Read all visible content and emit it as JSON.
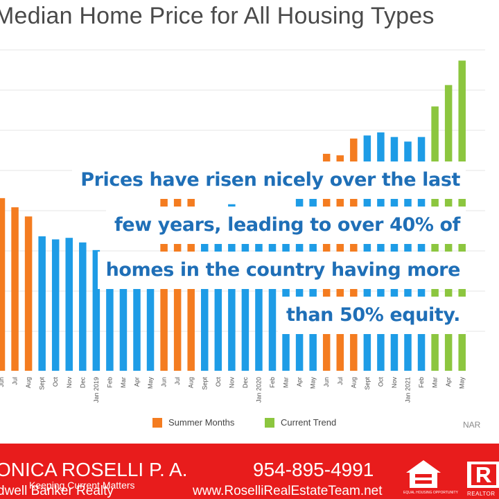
{
  "chart_data": {
    "type": "bar",
    "title": "Median Home Price for All Housing Types",
    "categories": [
      "Jun",
      "Jul",
      "Aug",
      "Sept",
      "Oct",
      "Nov",
      "Dec",
      "Jan 2019",
      "Feb",
      "Mar",
      "Apr",
      "May",
      "Jun",
      "Jul",
      "Aug",
      "Sept",
      "Oct",
      "Nov",
      "Dec",
      "Jan 2020",
      "Feb",
      "Mar",
      "Apr",
      "May",
      "Jun",
      "Jul",
      "Aug",
      "Sept",
      "Oct",
      "Nov",
      "Jan 2021",
      "Feb",
      "Mar",
      "Apr",
      "May"
    ],
    "values": [
      268,
      262,
      256,
      243,
      241,
      242,
      239,
      234,
      227,
      222,
      219,
      220,
      277,
      286,
      281,
      262,
      261,
      264,
      259,
      260,
      252,
      255,
      270,
      276,
      297,
      296,
      307,
      309,
      311,
      308,
      305,
      308,
      328,
      342,
      358
    ],
    "color_groups": [
      "summer",
      "summer",
      "summer",
      "other",
      "other",
      "other",
      "other",
      "other",
      "other",
      "other",
      "other",
      "other",
      "summer",
      "summer",
      "summer",
      "other",
      "other",
      "other",
      "other",
      "other",
      "other",
      "other",
      "other",
      "other",
      "summer",
      "summer",
      "summer",
      "other",
      "other",
      "other",
      "other",
      "other",
      "current",
      "current",
      "current"
    ],
    "colors": {
      "summer": "#f47c20",
      "other": "#1e9ce6",
      "current": "#8cc63f"
    },
    "ylim": [
      155,
      365
    ],
    "grid": "horizontal",
    "legend_placement": "bottom-center",
    "legend": [
      {
        "label": "Summer Months",
        "color": "#f47c20"
      },
      {
        "label": "Current Trend",
        "color": "#8cc63f"
      }
    ],
    "source": "NAR"
  },
  "callout": {
    "lines": [
      "Prices have risen nicely over the last",
      "few years, leading to over 40% of",
      "homes in the country having more",
      "than 50% equity."
    ],
    "color": "#1f6fb7"
  },
  "footer": {
    "agent_name": "ONICA ROSELLI P. A.",
    "tagline": "Keeping Current Matters",
    "agency": "dwell Banker Realty",
    "phone": "954-895-4991",
    "website": "www.RoselliRealEstateTeam.net",
    "eho_icon": "equal-housing-icon",
    "eho_text": "EQUAL HOUSING OPPORTUNITY",
    "realtor_icon": "realtor-logo-icon",
    "realtor_text": "REALTOR",
    "background": "#e81c1c"
  }
}
